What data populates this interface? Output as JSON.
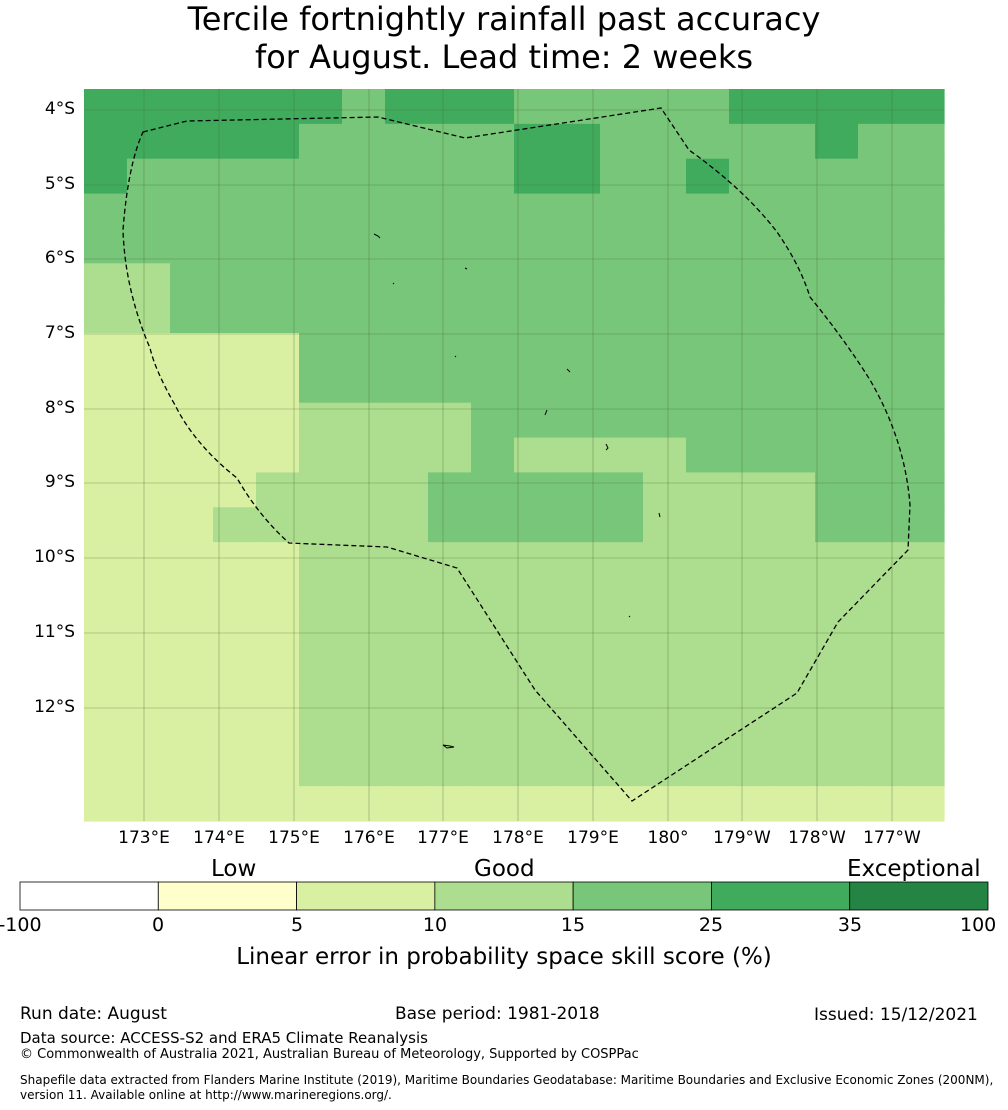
{
  "title_line1": "Tercile fortnightly rainfall past accuracy",
  "title_line2": "for August. Lead time: 2 weeks",
  "lat_labels": [
    "4°S",
    "5°S",
    "6°S",
    "7°S",
    "8°S",
    "9°S",
    "10°S",
    "11°S",
    "12°S"
  ],
  "lon_labels": [
    "173°E",
    "174°E",
    "175°E",
    "176°E",
    "177°E",
    "178°E",
    "179°E",
    "180°",
    "179°W",
    "178°W",
    "177°W"
  ],
  "legend": {
    "categories": [
      "Low",
      "Good",
      "Exceptional"
    ],
    "ticks": [
      "-100",
      "0",
      "5",
      "10",
      "15",
      "25",
      "35",
      "100"
    ],
    "bins": [
      {
        "from": "-100",
        "to": "0",
        "color": "#ffffff"
      },
      {
        "from": "0",
        "to": "5",
        "color": "#ffffcc"
      },
      {
        "from": "5",
        "to": "10",
        "color": "#d9f0a3"
      },
      {
        "from": "10",
        "to": "15",
        "color": "#addd8e"
      },
      {
        "from": "15",
        "to": "25",
        "color": "#78c679"
      },
      {
        "from": "25",
        "to": "35",
        "color": "#41ab5d"
      },
      {
        "from": "35",
        "to": "100",
        "color": "#238443"
      }
    ],
    "title": "Linear error in probability space skill score (%)"
  },
  "map": {
    "grid_rows": [
      "55555545554444455555",
      "55555444445544444544",
      "54444444445544544444",
      "44444444444444444444",
      "44444444444444444444",
      "33444444444444444444",
      "33444444444444444444",
      "22222444444444444444",
      "22222444444444444444",
      "22222333344444444444",
      "22222333343333444444",
      "22223333444443333444",
      "22233333444443333444",
      "22222333333333333333",
      "22222333333333333333",
      "22222333333333333333",
      "22222333333333333333",
      "22222333333333333333",
      "22222333333333333333",
      "22222333333333333333",
      "22222222222222222222"
    ],
    "color_scale": {
      "2": "#d9f0a3",
      "3": "#addd8e",
      "4": "#78c679",
      "5": "#41ab5d"
    },
    "eez_boundary": "dashed"
  },
  "footer": {
    "run_date": "Run date: August",
    "base_period": "Base period: 1981-2018",
    "issued": "Issued: 15/12/2021",
    "data_source": "Data source: ACCESS-S2 and ERA5 Climate Reanalysis",
    "copyright": "© Commonwealth of Australia 2021, Australian Bureau of Meteorology, Supported by COSPPac",
    "shapefile_line1": "Shapefile data extracted from Flanders Marine Institute (2019), Maritime Boundaries Geodatabase: Maritime Boundaries and Exclusive Economic Zones (200NM),",
    "shapefile_line2": "version 11. Available online at http://www.marineregions.org/."
  }
}
